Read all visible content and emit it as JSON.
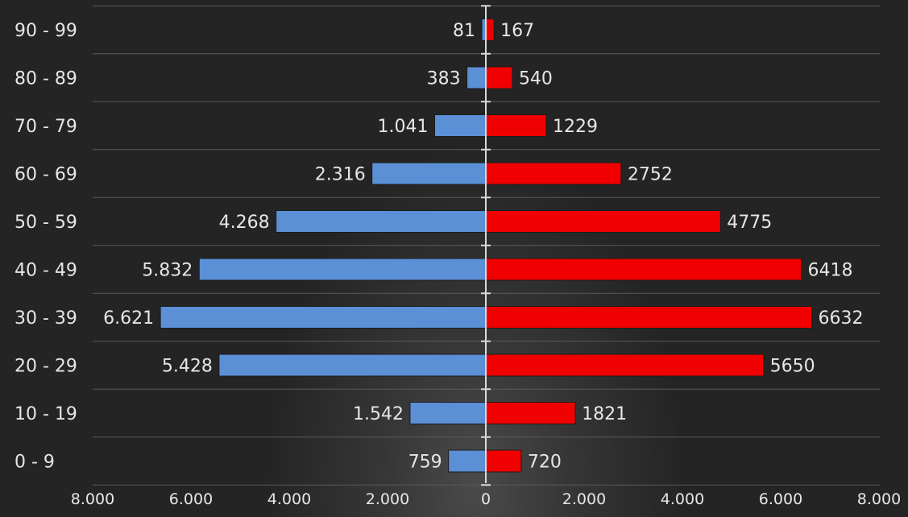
{
  "chart_data": {
    "type": "bar",
    "orientation": "horizontal",
    "layout": "population-pyramid",
    "title": "",
    "xlabel": "",
    "ylabel": "",
    "categories": [
      "90 - 99",
      "80 - 89",
      "70 - 79",
      "60 - 69",
      "50 - 59",
      "40 - 49",
      "30 - 39",
      "20 - 29",
      "10 - 19",
      "0 - 9"
    ],
    "series": [
      {
        "side": "left",
        "color": "#5b8fd6",
        "values": [
          81,
          383,
          1041,
          2316,
          4268,
          5832,
          6621,
          5428,
          1542,
          759
        ],
        "data_labels": [
          "81",
          "383",
          "1.041",
          "2.316",
          "4.268",
          "5.832",
          "6.621",
          "5.428",
          "1.542",
          "759"
        ]
      },
      {
        "side": "right",
        "color": "#f00000",
        "values": [
          167,
          540,
          1229,
          2752,
          4775,
          6418,
          6632,
          5650,
          1821,
          720
        ],
        "data_labels": [
          "167",
          "540",
          "1229",
          "2752",
          "4775",
          "6418",
          "6632",
          "5650",
          "1821",
          "720"
        ]
      }
    ],
    "xlim": [
      -8000,
      8000
    ],
    "x_ticks": [
      -8000,
      -6000,
      -4000,
      -2000,
      0,
      2000,
      4000,
      6000,
      8000
    ],
    "x_tick_labels": [
      "8.000",
      "6.000",
      "4.000",
      "2.000",
      "0",
      "2.000",
      "4.000",
      "6.000",
      "8.000"
    ],
    "grid": true,
    "legend": "none"
  }
}
